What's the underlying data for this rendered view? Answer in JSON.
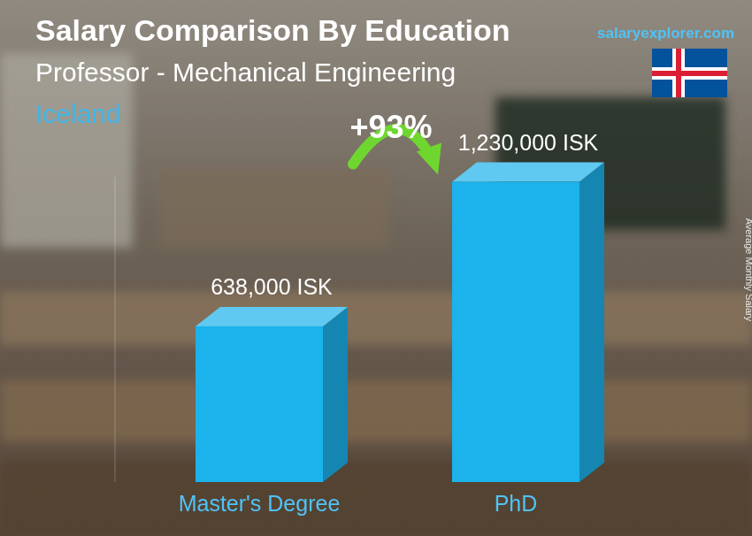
{
  "chart_data": {
    "type": "bar",
    "title": "Salary Comparison By Education",
    "subtitle": "Professor - Mechanical Engineering",
    "region": "Iceland",
    "source": "salaryexplorer.com",
    "y_label": "Average Monthly Salary",
    "annotation": "+93%",
    "categories": [
      "Master's Degree",
      "PhD"
    ],
    "values": [
      638000,
      1230000
    ],
    "value_labels": [
      "638,000 ISK",
      "1,230,000 ISK"
    ],
    "color": "#1cb2ec",
    "ylim": [
      0,
      1250000
    ],
    "data_labels": true,
    "tick_labels": "x",
    "grid": false
  }
}
